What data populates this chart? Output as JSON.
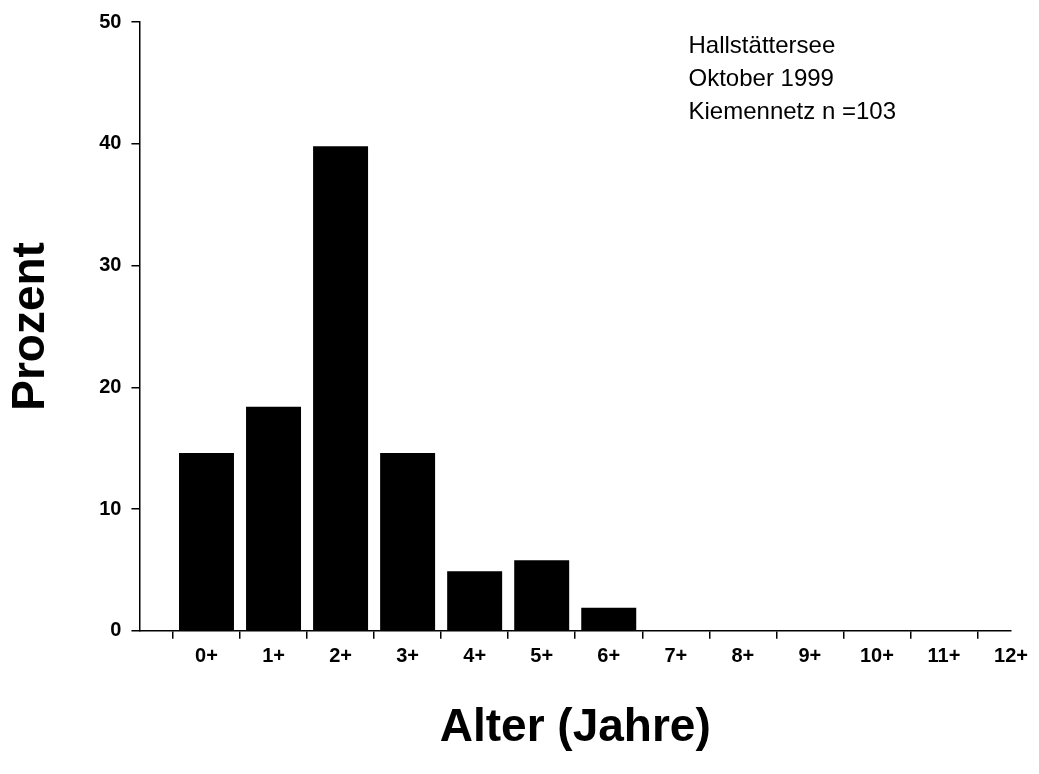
{
  "chart_data": {
    "type": "bar",
    "xlabel": "Alter (Jahre)",
    "ylabel": "Prozent",
    "categories": [
      "0+",
      "1+",
      "2+",
      "3+",
      "4+",
      "5+",
      "6+",
      "7+",
      "8+",
      "9+",
      "10+",
      "11+",
      "12+"
    ],
    "values": [
      14.6,
      18.4,
      39.8,
      14.6,
      4.9,
      5.8,
      1.9,
      0,
      0,
      0,
      0,
      0,
      0
    ],
    "color": "#000000",
    "ylim": [
      0,
      50
    ],
    "yticks": [
      0,
      10,
      20,
      30,
      40,
      50
    ],
    "annotations": [
      "Hallstättersee",
      "Oktober 1999",
      "Kiemennetz n =103"
    ]
  }
}
